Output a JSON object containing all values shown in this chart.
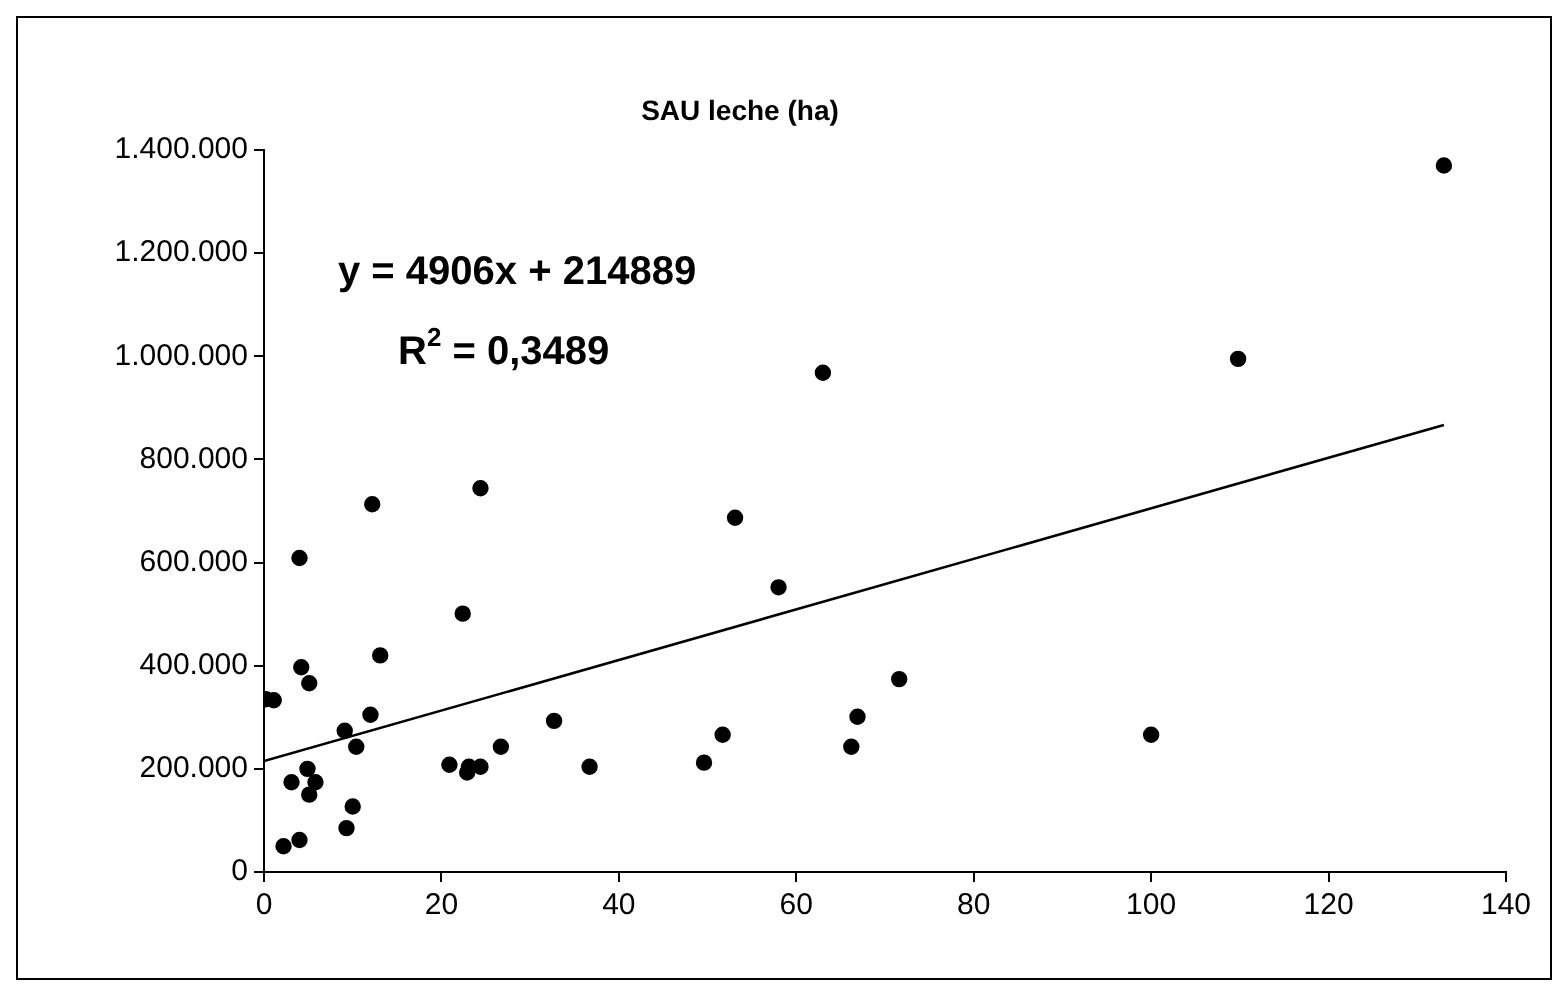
{
  "chart_data": {
    "type": "scatter",
    "title": "SAU leche (ha)",
    "annotations": [
      "y = 4906x + 214889",
      "R$^{2}$ = 0,3489"
    ],
    "series": [
      {
        "type": "scatter",
        "marker": "circle",
        "color": "#000000",
        "x": [
          0.2,
          1.1,
          4,
          12.2,
          24.4,
          22.4,
          4.2,
          5.1,
          13.1,
          12,
          9.1,
          10.4,
          4.9,
          3.1,
          5.8,
          5.1,
          10,
          9.3,
          4,
          2.2,
          20.9,
          22.9,
          23.1,
          24.4,
          26.7,
          32.7,
          53.1,
          58,
          36.7,
          49.6,
          51.7,
          66.2,
          66.9,
          71.6,
          100,
          109.8,
          63,
          133
        ],
        "values": [
          335000,
          333000,
          609000,
          713000,
          744000,
          501000,
          397000,
          366000,
          420000,
          305000,
          274000,
          243000,
          200000,
          174000,
          174000,
          150000,
          127000,
          85000,
          62000,
          50000,
          208000,
          193000,
          204000,
          204000,
          243000,
          293000,
          687000,
          552000,
          204000,
          212000,
          266000,
          243000,
          301000,
          374000,
          266000,
          995000,
          968000,
          1370000
        ]
      },
      {
        "type": "line",
        "color": "#000000",
        "x": [
          0,
          133
        ],
        "values": [
          215000,
          867000
        ]
      }
    ],
    "xlim": [
      0,
      140
    ],
    "xticks": [
      0,
      20,
      40,
      60,
      80,
      100,
      120,
      140
    ],
    "ylim": [
      0,
      1400000
    ],
    "yticks": [
      0,
      {
        "value": 200000,
        "label": "200.000"
      },
      {
        "value": 400000,
        "label": "400.000"
      },
      {
        "value": 600000,
        "label": "600.000"
      },
      {
        "value": 800000,
        "label": "800.000"
      },
      {
        "value": 1000000,
        "label": "1.000.000"
      },
      {
        "value": 1200000,
        "label": "1.200.000"
      },
      {
        "value": 1400000,
        "label": "1.400.000"
      }
    ],
    "grid": false,
    "legend": false,
    "line_style": "solid"
  }
}
